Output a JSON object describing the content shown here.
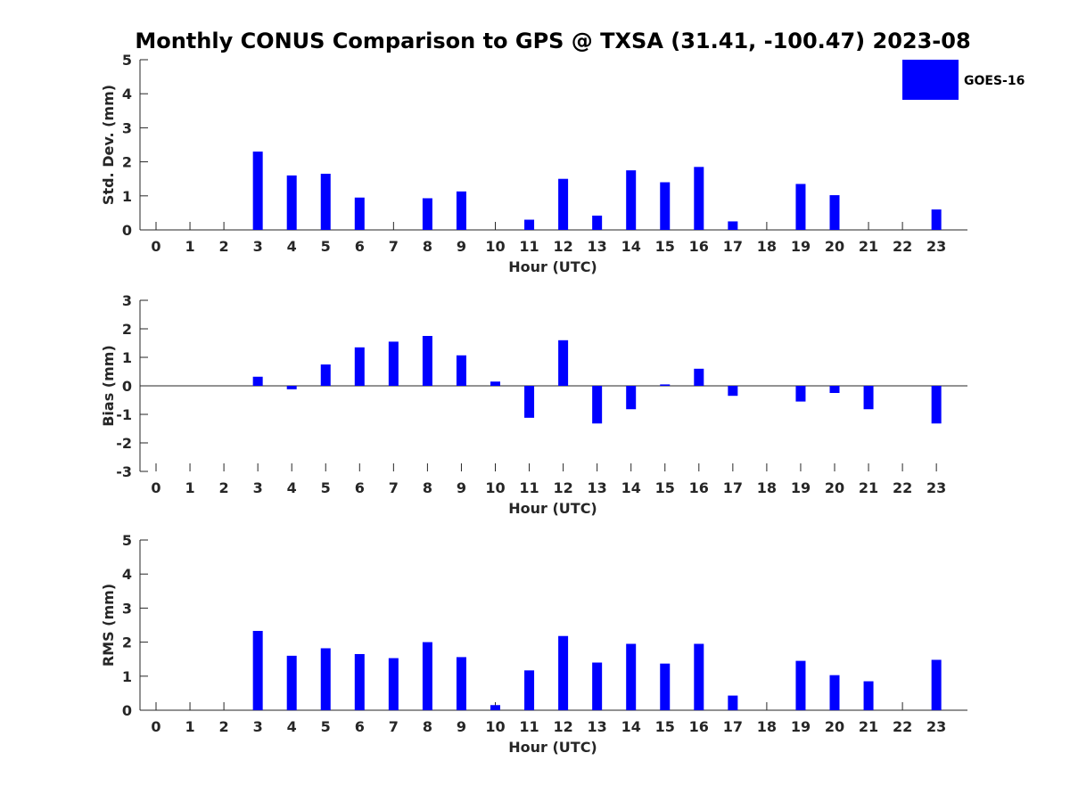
{
  "title": "Monthly CONUS Comparison to GPS @ TXSA (31.41, -100.47) 2023-08",
  "legend": {
    "label": "GOES-16",
    "color": "#0000ff",
    "placement": "top-right"
  },
  "chart_data": [
    {
      "type": "bar",
      "xlabel": "Hour (UTC)",
      "ylabel": "Std. Dev. (mm)",
      "ylim": [
        0,
        5
      ],
      "yticks": [
        "0",
        "1",
        "2",
        "3",
        "4",
        "5"
      ],
      "categories": [
        "0",
        "1",
        "2",
        "3",
        "4",
        "5",
        "6",
        "7",
        "8",
        "9",
        "10",
        "11",
        "12",
        "13",
        "14",
        "15",
        "16",
        "17",
        "18",
        "19",
        "20",
        "21",
        "22",
        "23"
      ],
      "series": [
        {
          "name": "GOES-16",
          "values": [
            null,
            null,
            null,
            2.3,
            1.6,
            1.65,
            0.95,
            null,
            0.93,
            1.13,
            null,
            0.3,
            1.5,
            0.42,
            1.75,
            1.4,
            1.85,
            0.25,
            null,
            1.35,
            1.02,
            null,
            null,
            0.6
          ]
        }
      ]
    },
    {
      "type": "bar",
      "xlabel": "Hour (UTC)",
      "ylabel": "Bias (mm)",
      "ylim": [
        -3,
        3
      ],
      "yticks": [
        "-3",
        "-2",
        "-1",
        "0",
        "1",
        "2",
        "3"
      ],
      "categories": [
        "0",
        "1",
        "2",
        "3",
        "4",
        "5",
        "6",
        "7",
        "8",
        "9",
        "10",
        "11",
        "12",
        "13",
        "14",
        "15",
        "16",
        "17",
        "18",
        "19",
        "20",
        "21",
        "22",
        "23"
      ],
      "series": [
        {
          "name": "GOES-16",
          "values": [
            null,
            null,
            null,
            0.32,
            -0.12,
            0.75,
            1.35,
            1.55,
            1.75,
            1.07,
            0.15,
            -1.12,
            1.6,
            -1.32,
            -0.82,
            0.05,
            0.6,
            -0.35,
            null,
            -0.55,
            -0.25,
            -0.82,
            null,
            -1.32
          ]
        }
      ]
    },
    {
      "type": "bar",
      "xlabel": "Hour (UTC)",
      "ylabel": "RMS (mm)",
      "ylim": [
        0,
        5
      ],
      "yticks": [
        "0",
        "1",
        "2",
        "3",
        "4",
        "5"
      ],
      "categories": [
        "0",
        "1",
        "2",
        "3",
        "4",
        "5",
        "6",
        "7",
        "8",
        "9",
        "10",
        "11",
        "12",
        "13",
        "14",
        "15",
        "16",
        "17",
        "18",
        "19",
        "20",
        "21",
        "22",
        "23"
      ],
      "series": [
        {
          "name": "GOES-16",
          "values": [
            null,
            null,
            null,
            2.33,
            1.6,
            1.82,
            1.65,
            1.53,
            2.0,
            1.56,
            0.15,
            1.17,
            2.18,
            1.4,
            1.95,
            1.37,
            1.95,
            0.43,
            null,
            1.45,
            1.03,
            0.85,
            null,
            1.48
          ]
        }
      ]
    }
  ]
}
